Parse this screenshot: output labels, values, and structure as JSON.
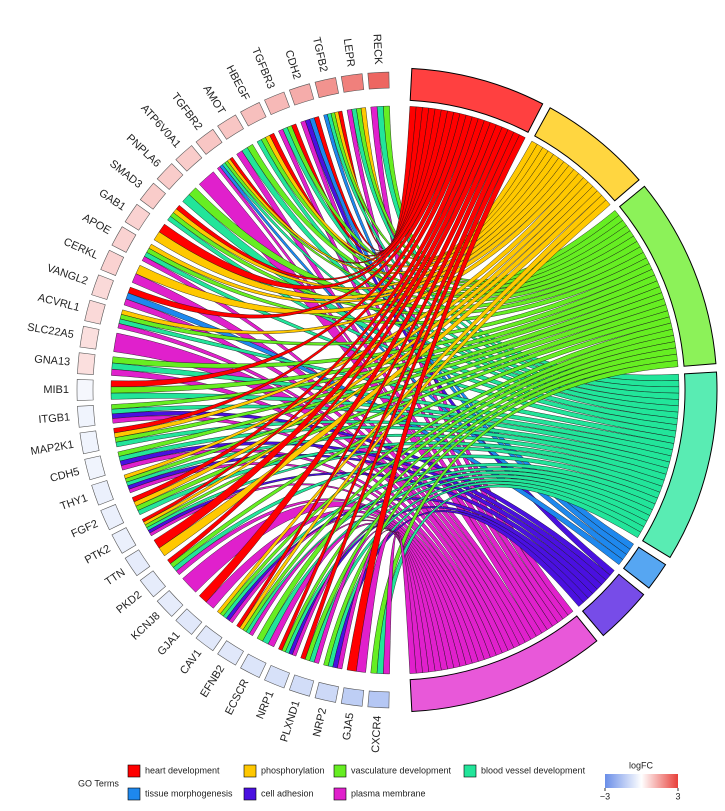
{
  "chart_data": {
    "type": "chord",
    "genes": [
      "RECK",
      "LEPR",
      "TGFB2",
      "CDH2",
      "TGFBR3",
      "HBEGF",
      "AMOT",
      "TGFBR2",
      "ATP6V0A1",
      "PNPLA6",
      "SMAD3",
      "GAB1",
      "APOE",
      "CERKL",
      "VANGL2",
      "ACVRL1",
      "SLC22A5",
      "GNA13",
      "MIB1",
      "ITGB1",
      "MAP2K1",
      "CDH5",
      "THY1",
      "FGF2",
      "PTK2",
      "TTN",
      "PKD2",
      "KCNJ8",
      "GJA1",
      "CAV1",
      "EFNB2",
      "ECSCR",
      "NRP1",
      "PLXND1",
      "NRP2",
      "GJA5",
      "CXCR4"
    ],
    "logFC": [
      2.4,
      2.0,
      1.7,
      1.3,
      1.1,
      1.0,
      0.9,
      0.9,
      0.8,
      0.8,
      0.8,
      0.7,
      0.7,
      0.7,
      0.6,
      0.6,
      0.5,
      0.5,
      -0.2,
      -0.3,
      -0.3,
      -0.3,
      -0.4,
      -0.4,
      -0.4,
      -0.5,
      -0.5,
      -0.5,
      -0.6,
      -0.6,
      -0.6,
      -0.7,
      -0.8,
      -0.9,
      -1.0,
      -1.3,
      -1.5
    ],
    "terms": [
      "heart development",
      "phosphorylation",
      "vasculature development",
      "blood vessel development",
      "tissue morphogenesis",
      "cell adhesion",
      "plasma membrane"
    ],
    "colors": [
      "#ff0000",
      "#ffc800",
      "#66ee22",
      "#22e59a",
      "#1e88ee",
      "#4a10e0",
      "#e020cc"
    ],
    "matrix": [
      [
        0,
        0,
        1,
        1,
        0,
        0,
        1
      ],
      [
        0,
        1,
        1,
        1,
        0,
        0,
        1
      ],
      [
        1,
        1,
        1,
        1,
        1,
        0,
        0
      ],
      [
        1,
        0,
        0,
        0,
        1,
        1,
        1
      ],
      [
        1,
        0,
        1,
        1,
        0,
        0,
        1
      ],
      [
        1,
        1,
        1,
        1,
        0,
        0,
        0
      ],
      [
        0,
        0,
        1,
        1,
        0,
        0,
        1
      ],
      [
        1,
        1,
        1,
        1,
        1,
        0,
        1
      ],
      [
        0,
        0,
        0,
        0,
        0,
        0,
        1
      ],
      [
        0,
        0,
        1,
        1,
        0,
        0,
        0
      ],
      [
        1,
        1,
        1,
        1,
        0,
        0,
        0
      ],
      [
        1,
        1,
        0,
        0,
        0,
        0,
        0
      ],
      [
        0,
        1,
        1,
        1,
        0,
        0,
        1
      ],
      [
        0,
        1,
        0,
        0,
        0,
        0,
        1
      ],
      [
        1,
        0,
        0,
        0,
        1,
        0,
        1
      ],
      [
        0,
        1,
        1,
        1,
        0,
        0,
        1
      ],
      [
        0,
        0,
        0,
        0,
        0,
        0,
        1
      ],
      [
        0,
        0,
        1,
        1,
        0,
        0,
        1
      ],
      [
        1,
        0,
        1,
        1,
        0,
        0,
        0
      ],
      [
        0,
        0,
        1,
        1,
        0,
        1,
        1
      ],
      [
        1,
        1,
        1,
        1,
        0,
        0,
        0
      ],
      [
        0,
        0,
        1,
        1,
        0,
        1,
        1
      ],
      [
        0,
        1,
        1,
        1,
        0,
        1,
        1
      ],
      [
        1,
        1,
        1,
        1,
        0,
        0,
        0
      ],
      [
        1,
        1,
        1,
        1,
        0,
        1,
        1
      ],
      [
        1,
        1,
        0,
        0,
        0,
        0,
        0
      ],
      [
        1,
        0,
        1,
        1,
        0,
        0,
        1
      ],
      [
        0,
        0,
        0,
        0,
        0,
        0,
        1
      ],
      [
        1,
        0,
        0,
        0,
        0,
        0,
        1
      ],
      [
        0,
        1,
        1,
        1,
        0,
        1,
        1
      ],
      [
        1,
        1,
        1,
        1,
        0,
        0,
        1
      ],
      [
        0,
        0,
        1,
        1,
        0,
        0,
        1
      ],
      [
        1,
        0,
        1,
        1,
        0,
        1,
        1
      ],
      [
        1,
        0,
        1,
        1,
        0,
        0,
        1
      ],
      [
        0,
        0,
        1,
        1,
        0,
        1,
        1
      ],
      [
        1,
        0,
        0,
        0,
        0,
        0,
        1
      ],
      [
        0,
        0,
        1,
        1,
        0,
        0,
        1
      ]
    ],
    "legend_title": "GO Terms",
    "colorbar": {
      "title": "logFC",
      "lim": [
        -3,
        3
      ],
      "ticks": [
        {
          "value": -3,
          "label": "−3"
        },
        3
      ],
      "colors": [
        "#6a8ee8",
        "#ffffff",
        "#e8403a"
      ]
    }
  }
}
